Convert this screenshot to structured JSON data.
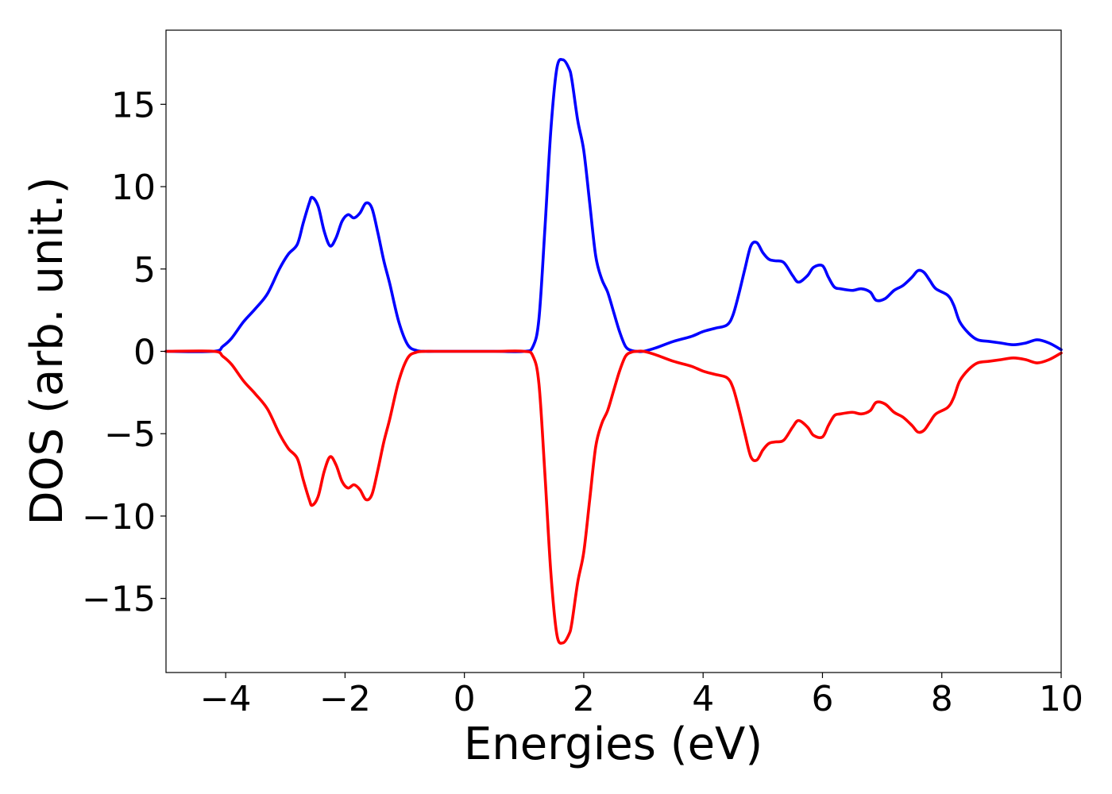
{
  "chart_data": {
    "type": "line",
    "title": "",
    "xlabel": "Energies (eV)",
    "ylabel": "DOS (arb. unit.)",
    "xlim": [
      -5,
      10
    ],
    "ylim": [
      -19.5,
      19.5
    ],
    "grid": false,
    "legend": "none",
    "xticks": [
      -4,
      -2,
      0,
      2,
      4,
      6,
      8,
      10
    ],
    "xtick_labels": [
      "−4",
      "−2",
      "0",
      "2",
      "4",
      "6",
      "8",
      "10"
    ],
    "yticks": [
      -15,
      -10,
      -5,
      0,
      5,
      10,
      15
    ],
    "ytick_labels": [
      "−15",
      "−10",
      "−5",
      "0",
      "5",
      "10",
      "15"
    ],
    "series": [
      {
        "color": "#0000ff",
        "x": [
          -5.0,
          -4.2,
          -4.05,
          -3.9,
          -3.7,
          -3.5,
          -3.3,
          -3.1,
          -2.95,
          -2.8,
          -2.7,
          -2.6,
          -2.55,
          -2.45,
          -2.35,
          -2.25,
          -2.15,
          -2.05,
          -1.95,
          -1.85,
          -1.75,
          -1.65,
          -1.55,
          -1.45,
          -1.35,
          -1.25,
          -1.1,
          -0.95,
          -0.8,
          -0.65,
          -0.5,
          0.0,
          0.5,
          1.0,
          1.15,
          1.25,
          1.35,
          1.45,
          1.55,
          1.65,
          1.75,
          1.8,
          1.9,
          2.0,
          2.1,
          2.2,
          2.3,
          2.4,
          2.5,
          2.6,
          2.7,
          2.8,
          2.9,
          3.0,
          3.2,
          3.5,
          3.8,
          4.0,
          4.2,
          4.4,
          4.5,
          4.6,
          4.7,
          4.8,
          4.9,
          5.0,
          5.1,
          5.2,
          5.35,
          5.5,
          5.6,
          5.75,
          5.85,
          6.0,
          6.1,
          6.2,
          6.3,
          6.5,
          6.65,
          6.8,
          6.9,
          7.05,
          7.2,
          7.35,
          7.5,
          7.6,
          7.7,
          7.8,
          7.9,
          8.1,
          8.2,
          8.3,
          8.45,
          8.6,
          8.8,
          9.0,
          9.2,
          9.4,
          9.6,
          9.8,
          10.0
        ],
        "values": [
          0.0,
          0.0,
          0.3,
          0.8,
          1.8,
          2.6,
          3.5,
          5.0,
          5.9,
          6.5,
          7.8,
          9.0,
          9.35,
          8.8,
          7.3,
          6.4,
          6.9,
          7.9,
          8.3,
          8.1,
          8.4,
          9.0,
          8.7,
          7.2,
          5.5,
          4.1,
          1.8,
          0.4,
          0.05,
          0.0,
          0.0,
          0.0,
          0.0,
          0.0,
          0.3,
          2.0,
          7.5,
          13.5,
          17.2,
          17.7,
          17.2,
          16.5,
          14.0,
          12.2,
          9.0,
          5.8,
          4.4,
          3.6,
          2.4,
          1.2,
          0.3,
          0.05,
          0.0,
          0.0,
          0.2,
          0.6,
          0.9,
          1.2,
          1.4,
          1.6,
          2.2,
          3.5,
          5.0,
          6.4,
          6.6,
          6.0,
          5.6,
          5.5,
          5.4,
          4.6,
          4.2,
          4.6,
          5.1,
          5.2,
          4.5,
          3.9,
          3.8,
          3.7,
          3.8,
          3.6,
          3.1,
          3.2,
          3.7,
          4.0,
          4.5,
          4.9,
          4.8,
          4.3,
          3.8,
          3.4,
          2.8,
          1.8,
          1.1,
          0.7,
          0.6,
          0.5,
          0.4,
          0.5,
          0.7,
          0.5,
          0.1
        ]
      },
      {
        "color": "#ff0000",
        "x": [
          -5.0,
          -4.2,
          -4.05,
          -3.9,
          -3.7,
          -3.5,
          -3.3,
          -3.1,
          -2.95,
          -2.8,
          -2.7,
          -2.6,
          -2.55,
          -2.45,
          -2.35,
          -2.25,
          -2.15,
          -2.05,
          -1.95,
          -1.85,
          -1.75,
          -1.65,
          -1.55,
          -1.45,
          -1.35,
          -1.25,
          -1.1,
          -0.95,
          -0.8,
          -0.65,
          -0.5,
          0.0,
          0.5,
          1.0,
          1.15,
          1.25,
          1.35,
          1.45,
          1.55,
          1.65,
          1.75,
          1.8,
          1.9,
          2.0,
          2.1,
          2.2,
          2.3,
          2.4,
          2.5,
          2.6,
          2.7,
          2.8,
          2.9,
          3.0,
          3.2,
          3.5,
          3.8,
          4.0,
          4.2,
          4.4,
          4.5,
          4.6,
          4.7,
          4.8,
          4.9,
          5.0,
          5.1,
          5.2,
          5.35,
          5.5,
          5.6,
          5.75,
          5.85,
          6.0,
          6.1,
          6.2,
          6.3,
          6.5,
          6.65,
          6.8,
          6.9,
          7.05,
          7.2,
          7.35,
          7.5,
          7.6,
          7.7,
          7.8,
          7.9,
          8.1,
          8.2,
          8.3,
          8.45,
          8.6,
          8.8,
          9.0,
          9.2,
          9.4,
          9.6,
          9.8,
          10.0
        ],
        "values": [
          0.0,
          0.0,
          -0.3,
          -0.8,
          -1.8,
          -2.6,
          -3.5,
          -5.0,
          -5.9,
          -6.5,
          -7.8,
          -9.0,
          -9.35,
          -8.8,
          -7.3,
          -6.4,
          -6.9,
          -7.9,
          -8.3,
          -8.1,
          -8.4,
          -9.0,
          -8.7,
          -7.2,
          -5.5,
          -4.1,
          -1.8,
          -0.4,
          -0.05,
          0.0,
          0.0,
          0.0,
          0.0,
          0.0,
          -0.3,
          -2.0,
          -7.5,
          -13.5,
          -17.2,
          -17.7,
          -17.2,
          -16.5,
          -14.0,
          -12.2,
          -9.0,
          -5.8,
          -4.4,
          -3.6,
          -2.4,
          -1.2,
          -0.3,
          -0.05,
          0.0,
          0.0,
          -0.2,
          -0.6,
          -0.9,
          -1.2,
          -1.4,
          -1.6,
          -2.2,
          -3.5,
          -5.0,
          -6.4,
          -6.6,
          -6.0,
          -5.6,
          -5.5,
          -5.4,
          -4.6,
          -4.2,
          -4.6,
          -5.1,
          -5.2,
          -4.5,
          -3.9,
          -3.8,
          -3.7,
          -3.8,
          -3.6,
          -3.1,
          -3.2,
          -3.7,
          -4.0,
          -4.5,
          -4.9,
          -4.8,
          -4.3,
          -3.8,
          -3.4,
          -2.8,
          -1.8,
          -1.1,
          -0.7,
          -0.6,
          -0.5,
          -0.4,
          -0.5,
          -0.7,
          -0.5,
          -0.1
        ]
      }
    ]
  }
}
